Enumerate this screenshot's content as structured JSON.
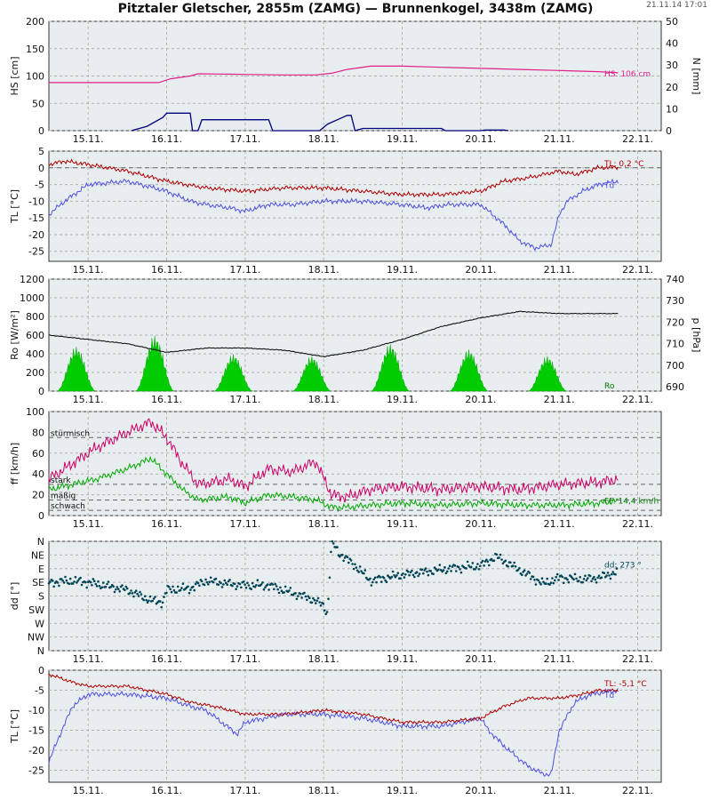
{
  "title": "Pitztaler Gletscher, 2855m (ZAMG) — Brunnenkogel, 3438m (ZAMG)",
  "timestamp": "21.11.14 17:01",
  "day_labels": [
    "15.11.",
    "16.11.",
    "17.11.",
    "18.11.",
    "19.11.",
    "20.11.",
    "21.11.",
    "22.11."
  ],
  "colors": {
    "hs": "#e0208a",
    "n": "#000080",
    "tl": "#b00000",
    "td": "#5050e0",
    "ro": "#00cc00",
    "p": "#000000",
    "ff": "#cc0066",
    "ff2": "#00aa00",
    "dd": "#004455"
  },
  "chart_data": [
    {
      "type": "line",
      "name": "snow",
      "ylabel": "HS [cm]",
      "ylabel2": "N [mm]",
      "ylim": [
        0,
        200
      ],
      "ylim2": [
        0,
        50
      ],
      "yticks": [
        0,
        50,
        100,
        150,
        200
      ],
      "yticks2": [
        0,
        10,
        20,
        30,
        40,
        50
      ],
      "annotation": "HS: 106 cm",
      "series": [
        {
          "key": "hs",
          "x": [
            14.5,
            15.0,
            15.4,
            15.9,
            16.05,
            16.3,
            16.4,
            17.0,
            17.5,
            17.9,
            18.1,
            18.3,
            18.6,
            19.0,
            19.5,
            20.0,
            20.5,
            21.0,
            21.5,
            21.75
          ],
          "y": [
            88,
            88,
            88,
            88,
            95,
            100,
            104,
            103,
            102,
            102,
            105,
            112,
            118,
            118,
            116,
            114,
            112,
            110,
            108,
            106
          ]
        },
        {
          "key": "n",
          "axis": 2,
          "x": [
            15.55,
            15.75,
            15.95,
            16.0,
            16.3,
            16.33,
            16.4,
            16.45,
            17.3,
            17.35,
            17.95,
            18.05,
            18.3,
            18.35,
            18.4,
            18.5,
            19.5,
            19.55,
            20.0,
            20.05,
            20.3,
            20.35
          ],
          "y": [
            0,
            2,
            6,
            8,
            8,
            0,
            0,
            5,
            5,
            0,
            0,
            3,
            7,
            7,
            0,
            1,
            1,
            0,
            0,
            0.3,
            0.3,
            0
          ]
        }
      ]
    },
    {
      "type": "line",
      "name": "temp-2855",
      "ylabel": "TL [°C]",
      "ylim": [
        -28,
        5
      ],
      "yticks": [
        -25,
        -20,
        -15,
        -10,
        -5,
        0,
        5
      ],
      "annotation_tl": "TL: 0,2 °C",
      "annotation_td": "Td",
      "series": [
        {
          "key": "tl",
          "x": [
            14.5,
            14.7,
            15.0,
            15.5,
            16.0,
            16.5,
            17.0,
            17.5,
            18.0,
            18.5,
            19.0,
            19.5,
            20.0,
            20.3,
            20.6,
            21.0,
            21.2,
            21.5,
            21.75
          ],
          "y": [
            1,
            2,
            1,
            -1,
            -4,
            -6,
            -7,
            -6,
            -6,
            -7,
            -8,
            -8,
            -7,
            -4,
            -3,
            -1,
            -2,
            0,
            0.2
          ]
        },
        {
          "key": "td",
          "x": [
            14.5,
            14.7,
            15.0,
            15.5,
            16.0,
            16.3,
            16.5,
            16.8,
            17.0,
            17.3,
            17.6,
            18.0,
            18.5,
            19.0,
            19.3,
            19.6,
            20.0,
            20.3,
            20.5,
            20.7,
            20.9,
            21.0,
            21.1,
            21.3,
            21.5,
            21.75
          ],
          "y": [
            -14,
            -10,
            -5,
            -4,
            -7,
            -10,
            -11,
            -12,
            -13,
            -11,
            -11,
            -10,
            -10,
            -11,
            -12,
            -11,
            -11,
            -17,
            -22,
            -24,
            -23,
            -14,
            -10,
            -7,
            -5,
            -4
          ]
        }
      ]
    },
    {
      "type": "area",
      "name": "radiation-pressure",
      "ylabel": "Ro [W/m²]",
      "ylabel2": "p [hPa]",
      "ylim": [
        0,
        1200
      ],
      "ylim2": [
        688,
        740
      ],
      "yticks": [
        0,
        200,
        400,
        600,
        800,
        1000,
        1200
      ],
      "yticks2": [
        690,
        700,
        710,
        720,
        730,
        740
      ],
      "annotation": "Ro",
      "ro_noon": [
        14.85,
        15.85,
        16.85,
        17.85,
        18.85,
        19.85,
        20.85
      ],
      "ro_peak": [
        480,
        600,
        400,
        380,
        510,
        450,
        380
      ],
      "series": [
        {
          "key": "p",
          "axis": 2,
          "x": [
            14.5,
            15.0,
            15.5,
            16.0,
            16.5,
            17.0,
            17.5,
            18.0,
            18.5,
            19.0,
            19.5,
            20.0,
            20.5,
            21.0,
            21.75
          ],
          "y": [
            714,
            712,
            710,
            706,
            708,
            708,
            707,
            704,
            707,
            712,
            718,
            722,
            725,
            724,
            724
          ]
        }
      ]
    },
    {
      "type": "line",
      "name": "wind",
      "ylabel": "ff [km/h]",
      "ylim": [
        0,
        100
      ],
      "yticks": [
        0,
        20,
        40,
        60,
        80,
        100
      ],
      "levels": [
        {
          "value": 75,
          "label": "stürmisch"
        },
        {
          "value": 30,
          "label": "stark"
        },
        {
          "value": 15,
          "label": "mäßig"
        },
        {
          "value": 5,
          "label": "schwach"
        }
      ],
      "annotation": "FF: 14,4 km/h",
      "series": [
        {
          "key": "ff",
          "x": [
            14.5,
            14.8,
            15.1,
            15.5,
            15.8,
            16.0,
            16.2,
            16.4,
            16.8,
            17.0,
            17.3,
            17.6,
            17.9,
            18.1,
            18.3,
            18.6,
            19.0,
            19.5,
            20.0,
            20.5,
            21.0,
            21.5,
            21.75
          ],
          "y": [
            35,
            50,
            65,
            80,
            90,
            75,
            50,
            30,
            35,
            28,
            45,
            42,
            52,
            20,
            18,
            25,
            28,
            25,
            28,
            25,
            30,
            32,
            35
          ]
        },
        {
          "key": "ff2",
          "x": [
            14.5,
            14.8,
            15.1,
            15.5,
            15.8,
            16.0,
            16.2,
            16.4,
            16.8,
            17.0,
            17.3,
            17.6,
            17.9,
            18.1,
            18.3,
            18.6,
            19.0,
            19.5,
            20.0,
            20.5,
            21.0,
            21.5,
            21.75
          ],
          "y": [
            25,
            30,
            35,
            45,
            55,
            40,
            25,
            15,
            18,
            12,
            20,
            18,
            15,
            8,
            8,
            10,
            12,
            10,
            12,
            10,
            10,
            12,
            14
          ]
        }
      ]
    },
    {
      "type": "scatter",
      "name": "wind-direction",
      "ylabel": "dd [°]",
      "ylim": [
        0,
        360
      ],
      "yticks": [
        "N",
        "NE",
        "E",
        "SE",
        "S",
        "SW",
        "W",
        "NW",
        "N"
      ],
      "annotation": "dd: 273 °",
      "series": [
        {
          "key": "dd",
          "x": [
            14.5,
            14.8,
            15.0,
            15.3,
            15.5,
            15.8,
            15.95,
            16.0,
            16.3,
            16.5,
            16.8,
            17.0,
            17.3,
            17.6,
            17.8,
            18.0,
            18.05,
            18.1,
            18.2,
            18.4,
            18.6,
            19.0,
            19.3,
            19.6,
            20.0,
            20.2,
            20.4,
            20.6,
            20.8,
            21.0,
            21.3,
            21.5,
            21.75
          ],
          "y": [
            225,
            230,
            225,
            210,
            200,
            165,
            160,
            200,
            205,
            230,
            220,
            215,
            215,
            190,
            175,
            150,
            120,
            360,
            320,
            280,
            230,
            250,
            260,
            270,
            280,
            310,
            280,
            250,
            220,
            240,
            235,
            240,
            260
          ]
        }
      ]
    },
    {
      "type": "line",
      "name": "temp-3438",
      "ylabel": "TL [°C]",
      "ylim": [
        -28,
        0
      ],
      "yticks": [
        -25,
        -20,
        -15,
        -10,
        -5,
        0
      ],
      "annotation_tl": "TL: -5,1 °C",
      "annotation_td": "Td",
      "series": [
        {
          "key": "tl",
          "x": [
            14.5,
            14.8,
            15.0,
            15.5,
            16.0,
            16.3,
            16.6,
            17.0,
            17.5,
            18.0,
            18.5,
            19.0,
            19.5,
            20.0,
            20.3,
            20.6,
            21.0,
            21.3,
            21.5,
            21.75
          ],
          "y": [
            -1,
            -3,
            -4,
            -4,
            -6,
            -8,
            -9,
            -11,
            -11,
            -10,
            -11,
            -13,
            -13,
            -12,
            -9,
            -7,
            -7,
            -6,
            -5,
            -5.1
          ]
        },
        {
          "key": "td",
          "x": [
            14.5,
            14.6,
            14.8,
            15.0,
            15.5,
            16.0,
            16.3,
            16.5,
            16.9,
            17.0,
            17.5,
            18.0,
            18.5,
            19.0,
            19.5,
            20.0,
            20.1,
            20.3,
            20.6,
            20.8,
            20.9,
            21.0,
            21.2,
            21.4,
            21.75
          ],
          "y": [
            -23,
            -18,
            -9,
            -6,
            -6,
            -7,
            -9,
            -10,
            -16,
            -13,
            -11,
            -11,
            -12,
            -14,
            -14,
            -12,
            -15,
            -19,
            -24,
            -26,
            -26,
            -15,
            -8,
            -6,
            -5
          ]
        }
      ]
    }
  ]
}
